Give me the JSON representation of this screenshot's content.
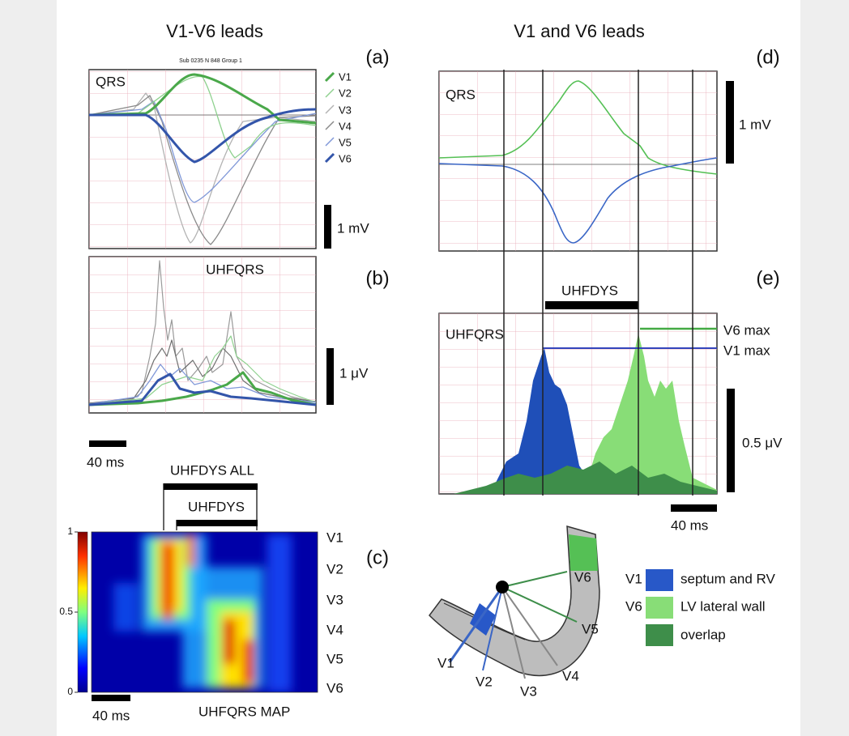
{
  "titles": [
    "V1-V6 leads",
    "V1 and V6 leads"
  ],
  "panel_a": {
    "letter": "(a)",
    "caption": "Sub 0235 N 848 Group 1",
    "label": "QRS",
    "legend": [
      "V1",
      "V2",
      "V3",
      "V4",
      "V5",
      "V6"
    ],
    "scale": "1 mV"
  },
  "panel_b": {
    "letter": "(b)",
    "label": "UHFQRS",
    "scale": "1 μV",
    "time_scale": "40 ms"
  },
  "panel_c": {
    "letter": "(c)",
    "bracket_all": "UHFDYS ALL",
    "bracket": "UHFDYS",
    "colorbar_ticks": [
      1,
      0.5,
      0
    ],
    "leads": [
      "V1",
      "V2",
      "V3",
      "V4",
      "V5",
      "V6"
    ],
    "time_scale": "40 ms",
    "label": "UHFQRS MAP"
  },
  "panel_d": {
    "letter": "(d)",
    "label": "QRS",
    "scale": "1 mV"
  },
  "panel_e": {
    "letter": "(e)",
    "bracket": "UHFDYS",
    "label": "UHFQRS",
    "v6_max": "V6 max",
    "v1_max": "V1 max",
    "scale": "0.5 μV",
    "time_scale": "40 ms"
  },
  "heart": {
    "leads": [
      "V6",
      "V5",
      "V1",
      "V2",
      "V3",
      "V4"
    ],
    "legend": [
      {
        "lead": "V1",
        "text": "septum and RV"
      },
      {
        "lead": "V6",
        "text": "LV lateral wall"
      },
      {
        "text": "overlap"
      }
    ]
  }
}
